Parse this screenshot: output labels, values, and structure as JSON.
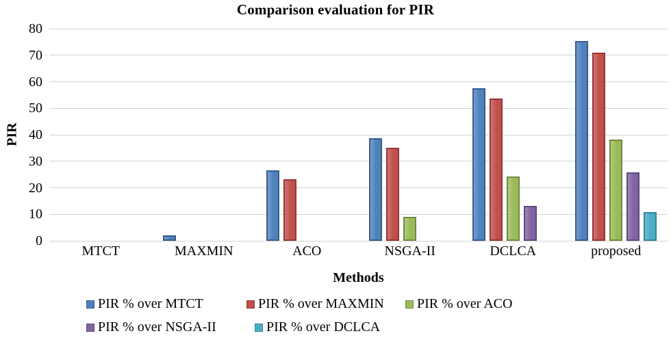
{
  "chart": {
    "title": "Comparison evaluation for PIR",
    "y_axis_title": "PIR",
    "x_axis_title": "Methods"
  },
  "chart_data": {
    "type": "bar",
    "title": "Comparison evaluation for PIR",
    "xlabel": "Methods",
    "ylabel": "PIR",
    "ylim": [
      0,
      80
    ],
    "ytick_step": 10,
    "grid": true,
    "gridline_color": "#d3d3d3",
    "legend_position": "bottom-left-two-rows",
    "categories": [
      "MTCT",
      "MAXMIN",
      "ACO",
      "NSGA-II",
      "DCLCA",
      "proposed"
    ],
    "series": [
      {
        "name": "PIR % over MTCT",
        "color": "#4F81BD",
        "border_color": "#385D8A",
        "values": [
          0,
          2.1,
          26.7,
          38.8,
          57.5,
          75.4
        ]
      },
      {
        "name": "PIR % over MAXMIN",
        "color": "#C0504D",
        "border_color": "#943634",
        "values": [
          0,
          0,
          23.2,
          35.1,
          53.7,
          71
        ]
      },
      {
        "name": "PIR % over ACO",
        "color": "#9BBB59",
        "border_color": "#71893F",
        "values": [
          0,
          0,
          0,
          9.1,
          24.3,
          38.1
        ]
      },
      {
        "name": "PIR % over NSGA-II",
        "color": "#8064A2",
        "border_color": "#5F497A",
        "values": [
          0,
          0,
          0,
          0,
          13.2,
          25.8
        ]
      },
      {
        "name": "PIR % over DCLCA",
        "color": "#4BACC6",
        "border_color": "#31859B",
        "values": [
          0,
          0,
          0,
          0,
          0,
          10.8
        ]
      }
    ],
    "legend_rows": [
      [
        0,
        1,
        2
      ],
      [
        3,
        4
      ]
    ]
  }
}
